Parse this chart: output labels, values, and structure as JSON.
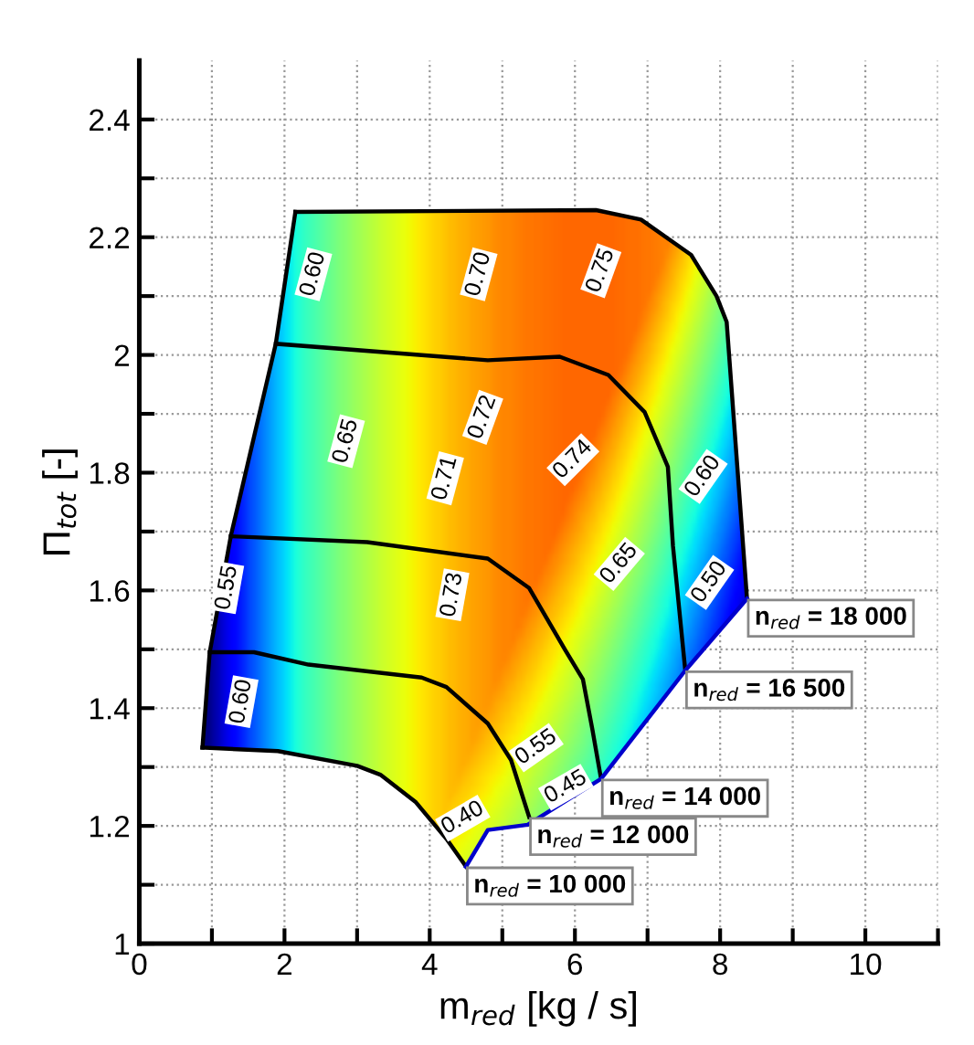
{
  "chart_data": {
    "type": "line",
    "xlabel": "m$_{red}$ [kg / s]",
    "ylabel": "Π$_{tot}$ [-]",
    "xlim": [
      0,
      11
    ],
    "ylim": [
      1,
      2.5
    ],
    "xticks": [
      0,
      {
        "value": 1,
        "label": null
      },
      2,
      {
        "value": 3,
        "label": null
      },
      4,
      {
        "value": 5,
        "label": null
      },
      6,
      {
        "value": 7,
        "label": null
      },
      8,
      {
        "value": 9,
        "label": null
      },
      10,
      {
        "value": 11,
        "label": null
      }
    ],
    "yticks": [
      1,
      {
        "value": 1.1,
        "label": null
      },
      1.2,
      {
        "value": 1.3,
        "label": null
      },
      1.4,
      {
        "value": 1.5,
        "label": null
      },
      1.6,
      {
        "value": 1.7,
        "label": null
      },
      1.8,
      {
        "value": 1.9,
        "label": null
      },
      2,
      {
        "value": 2.1,
        "label": null
      },
      2.2,
      {
        "value": 2.3,
        "label": null
      },
      2.4
    ],
    "grid": true,
    "line_style": "solid",
    "series": [
      {
        "name": "n$_{red}$ = 10 000",
        "color": "#000000",
        "x": [
          0.87,
          1.91,
          3.0,
          3.32,
          3.81,
          4.23,
          4.5
        ],
        "values": [
          1.333,
          1.327,
          1.302,
          1.287,
          1.24,
          1.178,
          1.131
        ]
      },
      {
        "name": "n$_{red}$ = 12 000",
        "color": "#000000",
        "x": [
          0.97,
          1.58,
          2.33,
          3.89,
          4.23,
          4.8,
          5.12,
          5.37
        ],
        "values": [
          1.495,
          1.495,
          1.474,
          1.452,
          1.436,
          1.374,
          1.312,
          1.215
        ]
      },
      {
        "name": "n$_{red}$ = 14 000",
        "color": "#000000",
        "x": [
          1.26,
          3.14,
          4.8,
          5.37,
          5.87,
          6.11,
          6.24,
          6.36
        ],
        "values": [
          1.692,
          1.682,
          1.654,
          1.604,
          1.498,
          1.449,
          1.364,
          1.28
        ]
      },
      {
        "name": "n$_{red}$ = 16 500",
        "color": "#000000",
        "x": [
          1.88,
          4.8,
          5.79,
          6.46,
          6.96,
          7.28,
          7.35,
          7.52
        ],
        "values": [
          2.019,
          1.991,
          1.997,
          1.966,
          1.903,
          1.81,
          1.676,
          1.464
        ]
      },
      {
        "name": "n$_{red}$ = 18 000",
        "color": "#000000",
        "x": [
          2.15,
          6.29,
          6.91,
          7.6,
          7.95,
          8.09,
          8.37
        ],
        "values": [
          2.243,
          2.246,
          2.23,
          2.17,
          2.1,
          2.056,
          1.586
        ]
      },
      {
        "color": "#000000",
        "x": [
          2.15,
          1.88,
          1.26,
          0.97,
          0.87
        ],
        "values": [
          2.243,
          2.019,
          1.692,
          1.495,
          1.333
        ]
      },
      {
        "color": "#0000cc",
        "x": [
          4.5,
          4.8,
          5.35,
          6.36,
          7.52,
          8.37
        ],
        "values": [
          1.131,
          1.193,
          1.202,
          1.28,
          1.464,
          1.586
        ]
      }
    ],
    "annotations": [
      "0.60",
      "0.70",
      "0.75",
      "0.65",
      "0.72",
      "0.71",
      "0.74",
      "0.73",
      "0.55",
      "0.60",
      "0.65",
      "0.60",
      "0.50",
      "0.55",
      "0.45",
      "0.40"
    ]
  }
}
